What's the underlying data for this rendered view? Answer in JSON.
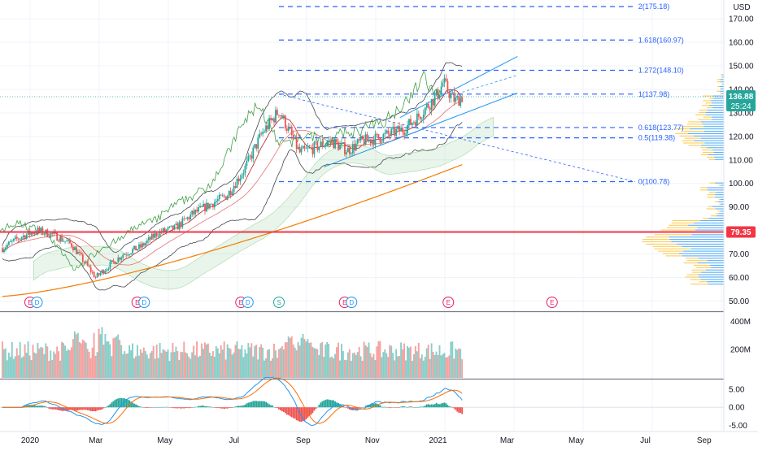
{
  "chart_data": {
    "type": "candlestick",
    "currency_label": "USD",
    "x_ticks": [
      "2020",
      "Mar",
      "May",
      "Jul",
      "Sep",
      "Nov",
      "2021",
      "Mar",
      "May",
      "Jul",
      "Sep"
    ],
    "price_axis": {
      "ticks": [
        "170.00",
        "160.00",
        "150.00",
        "140.00",
        "130.00",
        "120.00",
        "110.00",
        "100.00",
        "90.00",
        "80.00",
        "70.00",
        "60.00",
        "50.00"
      ],
      "ylim": [
        46,
        178
      ]
    },
    "volume_axis": {
      "ticks": [
        "400M",
        "200M"
      ]
    },
    "macd_axis": {
      "ticks": [
        "5.00",
        "0.00",
        "-5.00"
      ],
      "ylim": [
        -6.5,
        7.5
      ]
    },
    "last_price": {
      "label": "136.88",
      "countdown": "25:24"
    },
    "horizontal_line": {
      "label": "79.35",
      "value": 79.35,
      "color": "#f23645"
    },
    "fib_levels": [
      {
        "label": "2(175.18)",
        "value": 175.18
      },
      {
        "label": "1.618(160.97)",
        "value": 160.97
      },
      {
        "label": "1.272(148.10)",
        "value": 148.1
      },
      {
        "label": "1(137.98)",
        "value": 137.98
      },
      {
        "label": "0.618(123.77)",
        "value": 123.77
      },
      {
        "label": "0.5(119.38)",
        "value": 119.38
      },
      {
        "label": "0(100.78)",
        "value": 100.78
      }
    ],
    "events": [
      {
        "kind": "E",
        "month": 0.8
      },
      {
        "kind": "D",
        "month": 1.0
      },
      {
        "kind": "E",
        "month": 3.9
      },
      {
        "kind": "D",
        "month": 4.1
      },
      {
        "kind": "E",
        "month": 6.9
      },
      {
        "kind": "D",
        "month": 7.1
      },
      {
        "kind": "S",
        "month": 8.0
      },
      {
        "kind": "E",
        "month": 9.9
      },
      {
        "kind": "D",
        "month": 10.1
      },
      {
        "kind": "E",
        "month": 12.9
      },
      {
        "kind": "E",
        "month": 15.9
      }
    ],
    "close_series": [
      [
        0.0,
        72.5
      ],
      [
        0.5,
        77
      ],
      [
        1.0,
        80
      ],
      [
        1.5,
        78
      ],
      [
        2.0,
        74
      ],
      [
        2.4,
        66
      ],
      [
        2.7,
        60
      ],
      [
        3.0,
        64
      ],
      [
        3.5,
        70
      ],
      [
        4.0,
        73
      ],
      [
        4.5,
        79
      ],
      [
        5.0,
        81
      ],
      [
        5.5,
        87
      ],
      [
        6.0,
        91
      ],
      [
        6.5,
        95
      ],
      [
        7.0,
        106
      ],
      [
        7.5,
        121
      ],
      [
        8.0,
        131
      ],
      [
        8.3,
        122
      ],
      [
        8.6,
        113
      ],
      [
        9.0,
        115
      ],
      [
        9.5,
        118
      ],
      [
        10.0,
        114
      ],
      [
        10.4,
        118
      ],
      [
        10.8,
        119
      ],
      [
        11.2,
        121
      ],
      [
        11.6,
        123
      ],
      [
        12.0,
        128
      ],
      [
        12.3,
        133
      ],
      [
        12.6,
        138
      ],
      [
        12.75,
        143
      ],
      [
        12.9,
        139
      ],
      [
        13.1,
        135
      ],
      [
        13.3,
        136.88
      ]
    ],
    "colors": {
      "up": "#26a69a",
      "down": "#ef5350",
      "fib": "#2962ff",
      "sma200": "#f57c00",
      "accent": "#f23645",
      "last_price": "#26a69a"
    }
  }
}
